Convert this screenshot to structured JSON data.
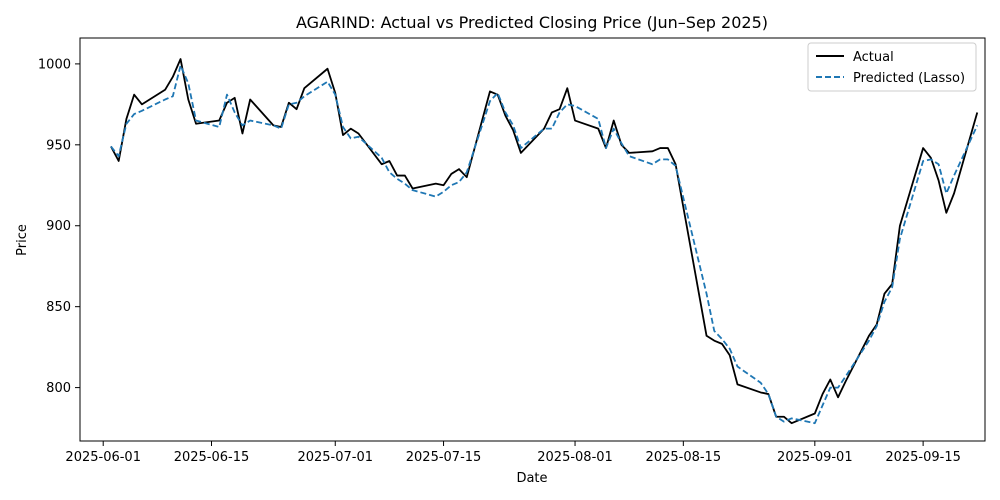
{
  "chart_data": {
    "type": "line",
    "title": "AGARIND: Actual vs Predicted Closing Price (Jun–Sep 2025)",
    "xlabel": "Date",
    "ylabel": "Price",
    "x_tick_labels": [
      "2025-06-01",
      "2025-06-15",
      "2025-07-01",
      "2025-07-15",
      "2025-08-01",
      "2025-08-15",
      "2025-09-01",
      "2025-09-15"
    ],
    "y_tick_labels": [
      "800",
      "850",
      "900",
      "950",
      "1000"
    ],
    "xlim": [
      "2025-05-29",
      "2025-09-23"
    ],
    "ylim": [
      767,
      1016
    ],
    "grid": false,
    "legend_position": "top-right",
    "colors": {
      "actual": "#000000",
      "predicted": "#1f77b4"
    },
    "series": [
      {
        "name": "Actual",
        "style": "solid",
        "points": [
          [
            "2025-06-02",
            949
          ],
          [
            "2025-06-03",
            940
          ],
          [
            "2025-06-04",
            966
          ],
          [
            "2025-06-05",
            981
          ],
          [
            "2025-06-06",
            975
          ],
          [
            "2025-06-09",
            984
          ],
          [
            "2025-06-10",
            992
          ],
          [
            "2025-06-11",
            1003
          ],
          [
            "2025-06-12",
            978
          ],
          [
            "2025-06-13",
            963
          ],
          [
            "2025-06-16",
            965
          ],
          [
            "2025-06-17",
            976
          ],
          [
            "2025-06-18",
            979
          ],
          [
            "2025-06-19",
            957
          ],
          [
            "2025-06-20",
            978
          ],
          [
            "2025-06-23",
            962
          ],
          [
            "2025-06-24",
            961
          ],
          [
            "2025-06-25",
            976
          ],
          [
            "2025-06-26",
            972
          ],
          [
            "2025-06-27",
            985
          ],
          [
            "2025-06-30",
            997
          ],
          [
            "2025-07-01",
            982
          ],
          [
            "2025-07-02",
            956
          ],
          [
            "2025-07-03",
            960
          ],
          [
            "2025-07-04",
            957
          ],
          [
            "2025-07-07",
            938
          ],
          [
            "2025-07-08",
            940
          ],
          [
            "2025-07-09",
            931
          ],
          [
            "2025-07-10",
            931
          ],
          [
            "2025-07-11",
            923
          ],
          [
            "2025-07-14",
            926
          ],
          [
            "2025-07-15",
            925
          ],
          [
            "2025-07-16",
            932
          ],
          [
            "2025-07-17",
            935
          ],
          [
            "2025-07-18",
            930
          ],
          [
            "2025-07-21",
            983
          ],
          [
            "2025-07-22",
            981
          ],
          [
            "2025-07-23",
            968
          ],
          [
            "2025-07-24",
            959
          ],
          [
            "2025-07-25",
            945
          ],
          [
            "2025-07-28",
            960
          ],
          [
            "2025-07-29",
            970
          ],
          [
            "2025-07-30",
            972
          ],
          [
            "2025-07-31",
            985
          ],
          [
            "2025-08-01",
            965
          ],
          [
            "2025-08-04",
            960
          ],
          [
            "2025-08-05",
            948
          ],
          [
            "2025-08-06",
            965
          ],
          [
            "2025-08-07",
            950
          ],
          [
            "2025-08-08",
            945
          ],
          [
            "2025-08-11",
            946
          ],
          [
            "2025-08-12",
            948
          ],
          [
            "2025-08-13",
            948
          ],
          [
            "2025-08-14",
            938
          ],
          [
            "2025-08-18",
            832
          ],
          [
            "2025-08-19",
            829
          ],
          [
            "2025-08-20",
            827
          ],
          [
            "2025-08-21",
            820
          ],
          [
            "2025-08-22",
            802
          ],
          [
            "2025-08-25",
            797
          ],
          [
            "2025-08-26",
            796
          ],
          [
            "2025-08-27",
            782
          ],
          [
            "2025-08-28",
            782
          ],
          [
            "2025-08-29",
            778
          ],
          [
            "2025-09-01",
            784
          ],
          [
            "2025-09-02",
            796
          ],
          [
            "2025-09-03",
            805
          ],
          [
            "2025-09-04",
            794
          ],
          [
            "2025-09-05",
            804
          ],
          [
            "2025-09-08",
            832
          ],
          [
            "2025-09-09",
            839
          ],
          [
            "2025-09-10",
            858
          ],
          [
            "2025-09-11",
            864
          ],
          [
            "2025-09-12",
            900
          ],
          [
            "2025-09-15",
            948
          ],
          [
            "2025-09-16",
            942
          ],
          [
            "2025-09-17",
            928
          ],
          [
            "2025-09-18",
            908
          ],
          [
            "2025-09-19",
            920
          ],
          [
            "2025-09-22",
            970
          ]
        ]
      },
      {
        "name": "Predicted (Lasso)",
        "style": "dashed",
        "points": [
          [
            "2025-06-02",
            949
          ],
          [
            "2025-06-03",
            943
          ],
          [
            "2025-06-04",
            963
          ],
          [
            "2025-06-05",
            969
          ],
          [
            "2025-06-06",
            971
          ],
          [
            "2025-06-09",
            978
          ],
          [
            "2025-06-10",
            980
          ],
          [
            "2025-06-11",
            999
          ],
          [
            "2025-06-12",
            988
          ],
          [
            "2025-06-13",
            965
          ],
          [
            "2025-06-16",
            961
          ],
          [
            "2025-06-17",
            981
          ],
          [
            "2025-06-18",
            970
          ],
          [
            "2025-06-19",
            962
          ],
          [
            "2025-06-20",
            965
          ],
          [
            "2025-06-23",
            962
          ],
          [
            "2025-06-24",
            960
          ],
          [
            "2025-06-25",
            975
          ],
          [
            "2025-06-26",
            976
          ],
          [
            "2025-06-27",
            980
          ],
          [
            "2025-06-30",
            989
          ],
          [
            "2025-07-01",
            981
          ],
          [
            "2025-07-02",
            961
          ],
          [
            "2025-07-03",
            954
          ],
          [
            "2025-07-04",
            955
          ],
          [
            "2025-07-07",
            942
          ],
          [
            "2025-07-08",
            933
          ],
          [
            "2025-07-09",
            929
          ],
          [
            "2025-07-10",
            926
          ],
          [
            "2025-07-11",
            922
          ],
          [
            "2025-07-14",
            918
          ],
          [
            "2025-07-15",
            921
          ],
          [
            "2025-07-16",
            925
          ],
          [
            "2025-07-17",
            927
          ],
          [
            "2025-07-18",
            933
          ],
          [
            "2025-07-21",
            977
          ],
          [
            "2025-07-22",
            982
          ],
          [
            "2025-07-23",
            970
          ],
          [
            "2025-07-24",
            962
          ],
          [
            "2025-07-25",
            948
          ],
          [
            "2025-07-28",
            960
          ],
          [
            "2025-07-29",
            960
          ],
          [
            "2025-07-30",
            970
          ],
          [
            "2025-07-31",
            975
          ],
          [
            "2025-08-01",
            974
          ],
          [
            "2025-08-04",
            966
          ],
          [
            "2025-08-05",
            948
          ],
          [
            "2025-08-06",
            960
          ],
          [
            "2025-08-07",
            951
          ],
          [
            "2025-08-08",
            943
          ],
          [
            "2025-08-11",
            938
          ],
          [
            "2025-08-12",
            941
          ],
          [
            "2025-08-13",
            941
          ],
          [
            "2025-08-14",
            937
          ],
          [
            "2025-08-18",
            858
          ],
          [
            "2025-08-19",
            835
          ],
          [
            "2025-08-20",
            830
          ],
          [
            "2025-08-21",
            824
          ],
          [
            "2025-08-22",
            813
          ],
          [
            "2025-08-25",
            803
          ],
          [
            "2025-08-26",
            796
          ],
          [
            "2025-08-27",
            782
          ],
          [
            "2025-08-28",
            779
          ],
          [
            "2025-08-29",
            781
          ],
          [
            "2025-09-01",
            778
          ],
          [
            "2025-09-02",
            789
          ],
          [
            "2025-09-03",
            800
          ],
          [
            "2025-09-04",
            800
          ],
          [
            "2025-09-05",
            807
          ],
          [
            "2025-09-08",
            829
          ],
          [
            "2025-09-09",
            838
          ],
          [
            "2025-09-10",
            853
          ],
          [
            "2025-09-11",
            862
          ],
          [
            "2025-09-12",
            892
          ],
          [
            "2025-09-15",
            940
          ],
          [
            "2025-09-16",
            941
          ],
          [
            "2025-09-17",
            938
          ],
          [
            "2025-09-18",
            920
          ],
          [
            "2025-09-19",
            931
          ],
          [
            "2025-09-22",
            962
          ]
        ]
      }
    ]
  }
}
